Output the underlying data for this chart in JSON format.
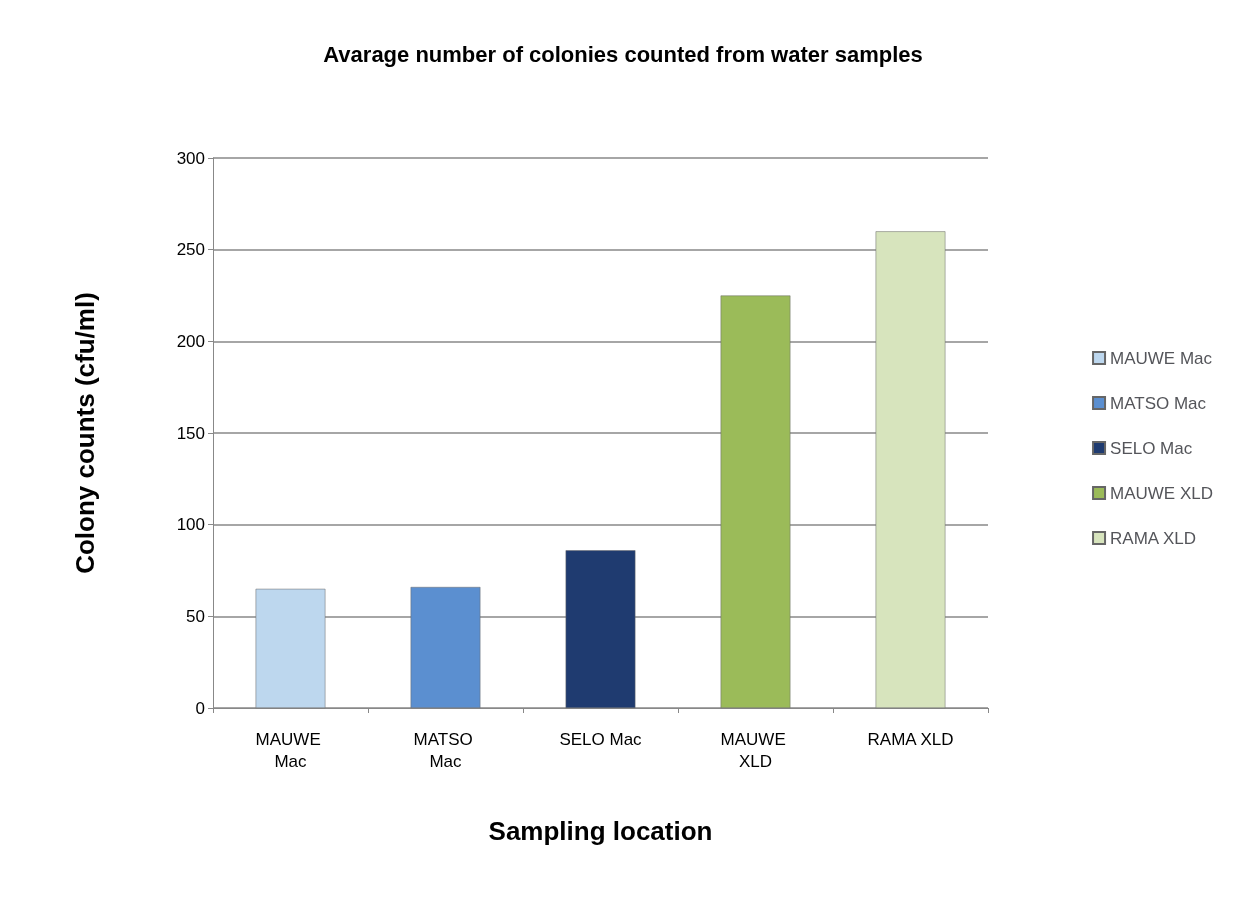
{
  "chart_data": {
    "type": "bar",
    "title": "Avarage number of colonies counted from water samples",
    "xlabel": "Sampling location",
    "ylabel": "Colony counts (cfu/ml)",
    "categories": [
      "MAUWE Mac",
      "MATSO Mac",
      "SELO Mac",
      "MAUWE XLD",
      "RAMA XLD"
    ],
    "series": [
      {
        "name": "MAUWE Mac",
        "color": "#bdd7ee",
        "values": [
          65,
          null,
          null,
          null,
          null
        ]
      },
      {
        "name": "MATSO Mac",
        "color": "#5b8fd0",
        "values": [
          null,
          66,
          null,
          null,
          null
        ]
      },
      {
        "name": "SELO Mac",
        "color": "#1f3b70",
        "values": [
          null,
          null,
          86,
          null,
          null
        ]
      },
      {
        "name": "MAUWE XLD",
        "color": "#9bbb59",
        "values": [
          null,
          null,
          null,
          225,
          null
        ]
      },
      {
        "name": "RAMA XLD",
        "color": "#d7e4bd",
        "values": [
          null,
          null,
          null,
          null,
          260
        ]
      }
    ],
    "ylim": [
      0,
      300
    ],
    "yticks": [
      0,
      50,
      100,
      150,
      200,
      250,
      300
    ],
    "grid": "y",
    "legend": "right",
    "stacked": true
  }
}
